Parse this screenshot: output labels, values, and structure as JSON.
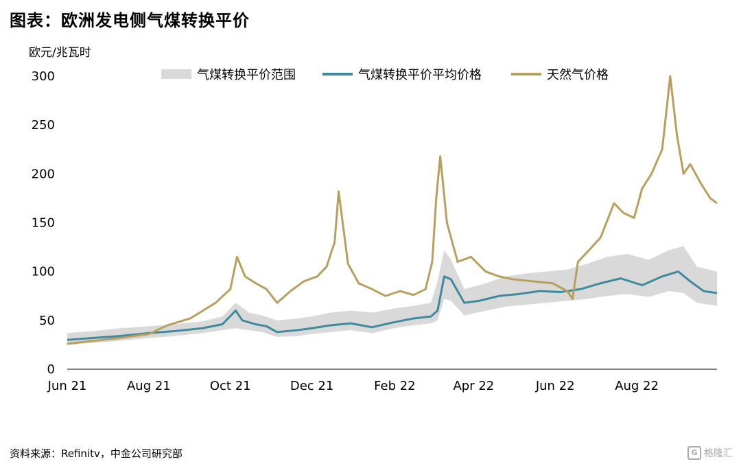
{
  "header": {
    "title": "图表：欧洲发电侧气煤转换平价",
    "unit": "欧元/兆瓦时"
  },
  "footer": {
    "source": "资料来源：Refinitv，中金公司研究部",
    "watermark": "格隆汇"
  },
  "chart_data": {
    "type": "line",
    "x_ticks": [
      "Jun 21",
      "Aug 21",
      "Oct 21",
      "Dec 21",
      "Feb 22",
      "Apr 22",
      "Jun 22",
      "Aug 22"
    ],
    "x_range": [
      "2021-06-01",
      "2022-09-30"
    ],
    "y_ticks": [
      0,
      50,
      100,
      150,
      200,
      250,
      300
    ],
    "ylim": [
      0,
      300
    ],
    "ylabel": "欧元/兆瓦时",
    "legend_position": "top",
    "colors": {
      "band": "#d9d9d9",
      "avg": "#3d8a9c",
      "gas": "#b89f5d"
    },
    "series": [
      {
        "name": "气煤转换平价范围",
        "kind": "band",
        "points": [
          [
            "2021-06-01",
            25,
            37
          ],
          [
            "2021-06-20",
            27,
            39
          ],
          [
            "2021-07-10",
            29,
            42
          ],
          [
            "2021-08-01",
            32,
            44
          ],
          [
            "2021-08-20",
            34,
            46
          ],
          [
            "2021-09-10",
            37,
            49
          ],
          [
            "2021-09-25",
            40,
            54
          ],
          [
            "2021-10-05",
            42,
            68
          ],
          [
            "2021-10-15",
            40,
            58
          ],
          [
            "2021-10-25",
            38,
            55
          ],
          [
            "2021-11-05",
            33,
            50
          ],
          [
            "2021-11-20",
            34,
            52
          ],
          [
            "2021-12-01",
            36,
            54
          ],
          [
            "2021-12-15",
            38,
            58
          ],
          [
            "2021-12-30",
            40,
            60
          ],
          [
            "2022-01-15",
            37,
            58
          ],
          [
            "2022-01-31",
            42,
            62
          ],
          [
            "2022-02-15",
            45,
            65
          ],
          [
            "2022-02-28",
            47,
            68
          ],
          [
            "2022-03-05",
            50,
            90
          ],
          [
            "2022-03-10",
            72,
            122
          ],
          [
            "2022-03-15",
            70,
            112
          ],
          [
            "2022-03-25",
            55,
            82
          ],
          [
            "2022-04-10",
            60,
            88
          ],
          [
            "2022-04-25",
            64,
            95
          ],
          [
            "2022-05-10",
            66,
            98
          ],
          [
            "2022-05-25",
            68,
            100
          ],
          [
            "2022-06-10",
            70,
            102
          ],
          [
            "2022-06-25",
            72,
            108
          ],
          [
            "2022-07-10",
            75,
            115
          ],
          [
            "2022-07-25",
            77,
            118
          ],
          [
            "2022-08-10",
            74,
            112
          ],
          [
            "2022-08-25",
            80,
            122
          ],
          [
            "2022-09-05",
            78,
            126
          ],
          [
            "2022-09-15",
            68,
            105
          ],
          [
            "2022-09-30",
            65,
            100
          ]
        ]
      },
      {
        "name": "气煤转换平价平均价格",
        "kind": "line",
        "points": [
          [
            "2021-06-01",
            30
          ],
          [
            "2021-06-20",
            32
          ],
          [
            "2021-07-10",
            34
          ],
          [
            "2021-08-01",
            37
          ],
          [
            "2021-08-20",
            39
          ],
          [
            "2021-09-10",
            42
          ],
          [
            "2021-09-25",
            46
          ],
          [
            "2021-10-05",
            60
          ],
          [
            "2021-10-10",
            50
          ],
          [
            "2021-10-20",
            46
          ],
          [
            "2021-10-28",
            44
          ],
          [
            "2021-11-05",
            38
          ],
          [
            "2021-11-20",
            40
          ],
          [
            "2021-12-01",
            42
          ],
          [
            "2021-12-15",
            45
          ],
          [
            "2021-12-30",
            47
          ],
          [
            "2022-01-15",
            43
          ],
          [
            "2022-01-31",
            48
          ],
          [
            "2022-02-15",
            52
          ],
          [
            "2022-02-28",
            54
          ],
          [
            "2022-03-05",
            60
          ],
          [
            "2022-03-10",
            95
          ],
          [
            "2022-03-15",
            92
          ],
          [
            "2022-03-25",
            68
          ],
          [
            "2022-04-05",
            70
          ],
          [
            "2022-04-20",
            75
          ],
          [
            "2022-05-05",
            77
          ],
          [
            "2022-05-20",
            80
          ],
          [
            "2022-06-05",
            79
          ],
          [
            "2022-06-20",
            82
          ],
          [
            "2022-07-05",
            88
          ],
          [
            "2022-07-20",
            93
          ],
          [
            "2022-08-05",
            86
          ],
          [
            "2022-08-20",
            95
          ],
          [
            "2022-09-01",
            100
          ],
          [
            "2022-09-10",
            90
          ],
          [
            "2022-09-20",
            80
          ],
          [
            "2022-09-30",
            78
          ]
        ]
      },
      {
        "name": "天然气价格",
        "kind": "line",
        "points": [
          [
            "2021-06-01",
            26
          ],
          [
            "2021-06-20",
            29
          ],
          [
            "2021-07-10",
            32
          ],
          [
            "2021-08-01",
            36
          ],
          [
            "2021-08-15",
            45
          ],
          [
            "2021-09-01",
            52
          ],
          [
            "2021-09-20",
            68
          ],
          [
            "2021-10-01",
            82
          ],
          [
            "2021-10-06",
            115
          ],
          [
            "2021-10-12",
            95
          ],
          [
            "2021-10-20",
            88
          ],
          [
            "2021-10-28",
            82
          ],
          [
            "2021-11-05",
            68
          ],
          [
            "2021-11-15",
            80
          ],
          [
            "2021-11-25",
            90
          ],
          [
            "2021-12-05",
            95
          ],
          [
            "2021-12-12",
            105
          ],
          [
            "2021-12-18",
            130
          ],
          [
            "2021-12-21",
            182
          ],
          [
            "2021-12-28",
            108
          ],
          [
            "2022-01-05",
            88
          ],
          [
            "2022-01-15",
            82
          ],
          [
            "2022-01-25",
            75
          ],
          [
            "2022-02-05",
            80
          ],
          [
            "2022-02-15",
            76
          ],
          [
            "2022-02-24",
            82
          ],
          [
            "2022-03-01",
            110
          ],
          [
            "2022-03-04",
            175
          ],
          [
            "2022-03-07",
            218
          ],
          [
            "2022-03-12",
            150
          ],
          [
            "2022-03-20",
            110
          ],
          [
            "2022-03-30",
            115
          ],
          [
            "2022-04-10",
            100
          ],
          [
            "2022-04-20",
            95
          ],
          [
            "2022-05-01",
            92
          ],
          [
            "2022-05-15",
            90
          ],
          [
            "2022-05-30",
            88
          ],
          [
            "2022-06-10",
            80
          ],
          [
            "2022-06-14",
            72
          ],
          [
            "2022-06-18",
            110
          ],
          [
            "2022-06-25",
            120
          ],
          [
            "2022-07-05",
            135
          ],
          [
            "2022-07-15",
            170
          ],
          [
            "2022-07-22",
            160
          ],
          [
            "2022-07-30",
            155
          ],
          [
            "2022-08-05",
            185
          ],
          [
            "2022-08-12",
            200
          ],
          [
            "2022-08-20",
            225
          ],
          [
            "2022-08-26",
            300
          ],
          [
            "2022-08-31",
            240
          ],
          [
            "2022-09-05",
            200
          ],
          [
            "2022-09-10",
            210
          ],
          [
            "2022-09-18",
            190
          ],
          [
            "2022-09-25",
            175
          ],
          [
            "2022-09-30",
            170
          ]
        ]
      }
    ]
  }
}
